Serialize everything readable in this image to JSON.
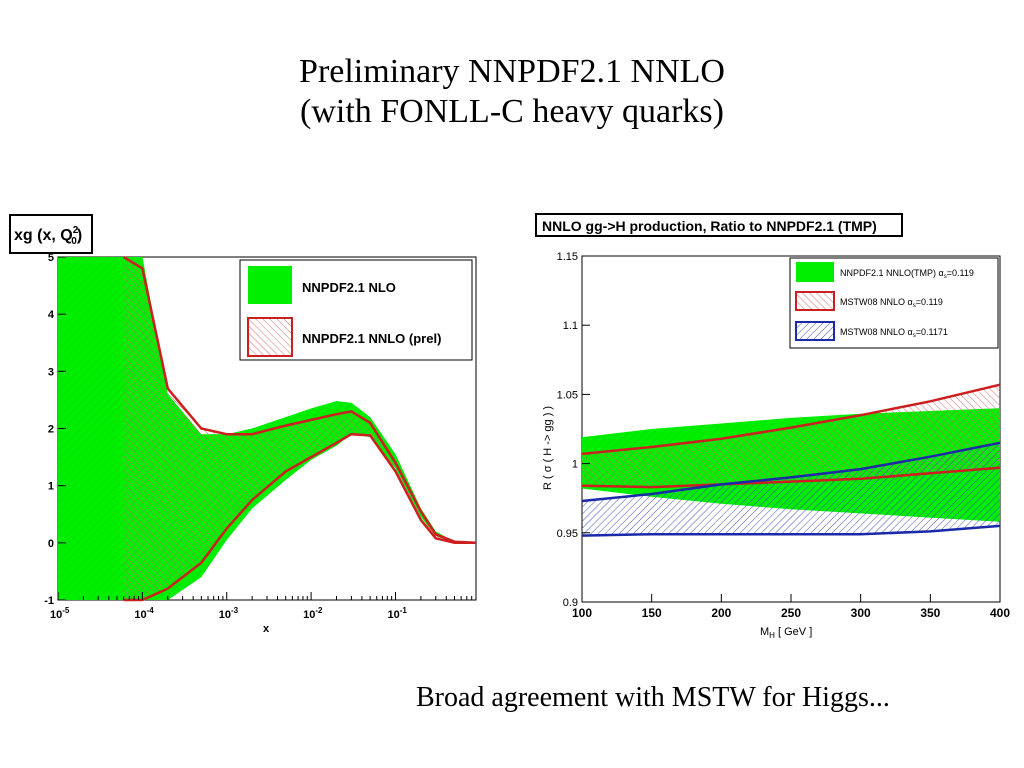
{
  "slide": {
    "title_line1": "Preliminary NNPDF2.1 NNLO",
    "title_line2": "(with FONLL-C heavy quarks)",
    "caption": "Broad agreement with MSTW for Higgs..."
  },
  "colors": {
    "green": "#00ee00",
    "red": "#cc2020",
    "blue": "#1a2aa8",
    "hatch_red": "#d07070",
    "hatch_blue": "#4455bb",
    "frame_bg": "#ffffff"
  },
  "chart_data": [
    {
      "type": "line",
      "title": "xg (x, Q0^2)",
      "title_text": "xg (x, Q",
      "title_sup": "2",
      "title_sub": "0",
      "title_close": ")",
      "xlabel": "x",
      "ylabel": "",
      "xscale": "log",
      "xlim": [
        1e-05,
        0.9
      ],
      "ylim": [
        -1,
        5
      ],
      "xticks": [
        "10-5",
        "10-4",
        "10-3",
        "10-2",
        "10-1"
      ],
      "xtick_values": [
        1e-05,
        0.0001,
        0.001,
        0.01,
        0.1
      ],
      "yticks": [
        -1,
        0,
        1,
        2,
        3,
        4,
        5
      ],
      "legend_position": "top-right",
      "series": [
        {
          "name": "NNPDF2.1 NLO",
          "style": "green-band",
          "x": [
            1e-05,
            3e-05,
            0.0001,
            0.0002,
            0.0005,
            0.001,
            0.002,
            0.005,
            0.01,
            0.02,
            0.03,
            0.05,
            0.1,
            0.2,
            0.3,
            0.5,
            0.9
          ],
          "upper": [
            5,
            5,
            5,
            2.6,
            1.9,
            1.9,
            2.0,
            2.2,
            2.35,
            2.48,
            2.45,
            2.2,
            1.55,
            0.6,
            0.2,
            0.02,
            0
          ],
          "lower": [
            -1,
            -1,
            -1,
            -1,
            -0.6,
            0.05,
            0.6,
            1.1,
            1.45,
            1.7,
            1.9,
            1.85,
            1.3,
            0.45,
            0.12,
            0,
            0
          ]
        },
        {
          "name": "NNPDF2.1 NNLO (prel)",
          "style": "red-hatch",
          "x": [
            6e-05,
            0.0001,
            0.0002,
            0.0005,
            0.001,
            0.002,
            0.005,
            0.01,
            0.02,
            0.03,
            0.05,
            0.1,
            0.2,
            0.3,
            0.5,
            0.9
          ],
          "upper": [
            5,
            4.8,
            2.7,
            2.0,
            1.9,
            1.9,
            2.05,
            2.15,
            2.25,
            2.3,
            2.1,
            1.4,
            0.55,
            0.15,
            0.02,
            0
          ],
          "lower": [
            -1,
            -1,
            -0.8,
            -0.35,
            0.25,
            0.75,
            1.25,
            1.5,
            1.75,
            1.9,
            1.88,
            1.25,
            0.4,
            0.08,
            0,
            0
          ]
        }
      ]
    },
    {
      "type": "line",
      "title": "NNLO gg->H production, Ratio to NNPDF2.1 (TMP)",
      "xlabel": "M",
      "xlabel_sub": "H",
      "xlabel_rest": " [ GeV ]",
      "ylabel": "R ( σ ( H -> gg ) )",
      "xlim": [
        100,
        400
      ],
      "ylim": [
        0.9,
        1.15
      ],
      "xticks": [
        100,
        150,
        200,
        250,
        300,
        350,
        400
      ],
      "yticks": [
        "0.9",
        "0.95",
        "1",
        "1.05",
        "1.1",
        "1.15"
      ],
      "ytick_values": [
        0.9,
        0.95,
        1,
        1.05,
        1.1,
        1.15
      ],
      "legend_position": "top-right",
      "series": [
        {
          "name": "NNPDF2.1 NNLO(TMP) αs=0.119",
          "name_main": "NNPDF2.1 NNLO(TMP) ",
          "name_alpha": "α",
          "name_sub": "s",
          "name_val": "=0.119",
          "style": "green-band",
          "x": [
            100,
            150,
            200,
            250,
            300,
            350,
            400
          ],
          "upper": [
            1.019,
            1.025,
            1.029,
            1.033,
            1.036,
            1.038,
            1.04
          ],
          "lower": [
            0.982,
            0.976,
            0.971,
            0.967,
            0.964,
            0.961,
            0.958
          ]
        },
        {
          "name": "MSTW08 NNLO αs=0.119",
          "name_main": "MSTW08 NNLO ",
          "name_alpha": "α",
          "name_sub": "s",
          "name_val": "=0.119",
          "style": "red-hatch",
          "x": [
            100,
            150,
            200,
            250,
            300,
            350,
            400
          ],
          "upper": [
            1.007,
            1.012,
            1.018,
            1.026,
            1.035,
            1.045,
            1.057
          ],
          "lower": [
            0.984,
            0.983,
            0.985,
            0.987,
            0.989,
            0.993,
            0.997
          ]
        },
        {
          "name": "MSTW08 NNLO αs=0.1171",
          "name_main": "MSTW08 NNLO ",
          "name_alpha": "α",
          "name_sub": "s",
          "name_val": "=0.1171",
          "style": "blue-hatch",
          "x": [
            100,
            150,
            200,
            250,
            300,
            350,
            400
          ],
          "upper": [
            0.973,
            0.978,
            0.985,
            0.99,
            0.996,
            1.005,
            1.015
          ],
          "lower": [
            0.948,
            0.949,
            0.949,
            0.949,
            0.949,
            0.951,
            0.955
          ]
        }
      ]
    }
  ]
}
